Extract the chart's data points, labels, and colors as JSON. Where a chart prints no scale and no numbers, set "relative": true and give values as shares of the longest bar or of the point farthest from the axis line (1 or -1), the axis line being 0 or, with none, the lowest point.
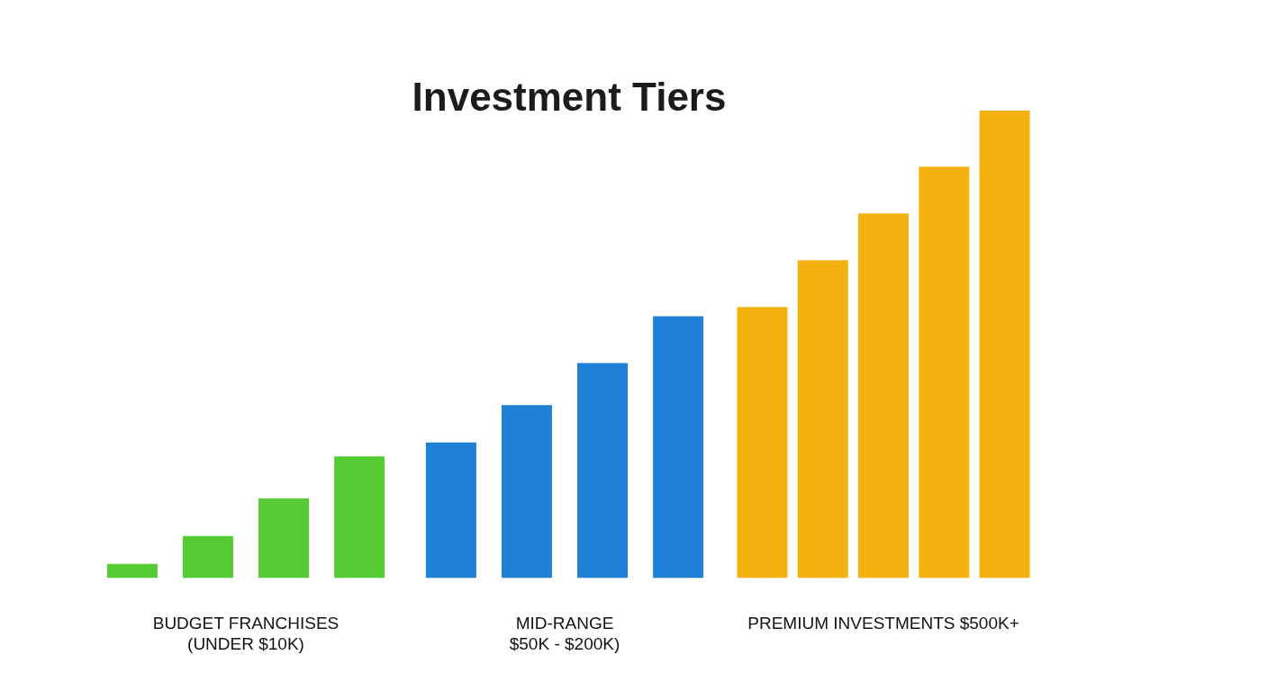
{
  "chart_data": {
    "type": "bar",
    "title": "Investment Tiers",
    "relative": true,
    "categories": [
      "BUDGET FRANCHISES\n(UNDER $10K)",
      "MID-RANGE\n$50K - $200K)",
      "PREMIUM INVESTMENTS $500K+"
    ],
    "series": [
      {
        "colors": [
          "#55cc33",
          "#1f80d8",
          "#f5b20e"
        ],
        "values": [
          0.03,
          0.29,
          0.58
        ]
      },
      {
        "colors": [
          "#55cc33",
          "#1f80d8",
          "#f5b20e"
        ],
        "values": [
          0.09,
          0.37,
          0.68
        ]
      },
      {
        "colors": [
          "#55cc33",
          "#1f80d8",
          "#f5b20e"
        ],
        "values": [
          0.17,
          0.46,
          0.78
        ]
      },
      {
        "colors": [
          "#55cc33",
          "#1f80d8",
          "#f5b20e"
        ],
        "values": [
          0.26,
          0.56,
          0.88
        ]
      },
      {
        "colors": [
          "#55cc33",
          "#1f80d8",
          "#f5b20e"
        ],
        "values": [
          null,
          null,
          1
        ]
      }
    ]
  }
}
